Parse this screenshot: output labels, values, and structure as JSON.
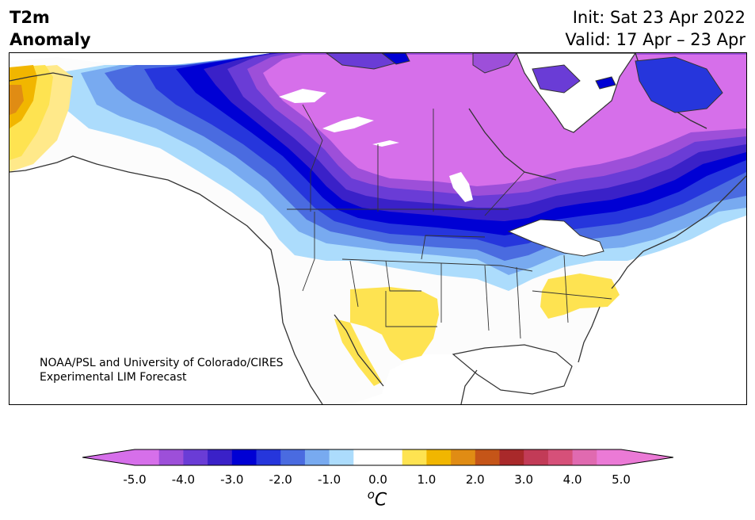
{
  "title": {
    "left_line1": "T2m",
    "left_line2": "Anomaly",
    "right_line1": "Init: Sat 23 Apr 2022",
    "right_line2": "Valid: 17 Apr – 23 Apr"
  },
  "credit": {
    "line1": "NOAA/PSL and University of Colorado/CIRES",
    "line2": "Experimental LIM Forecast"
  },
  "colorbar": {
    "ticks": [
      "-5.0",
      "-4.0",
      "-3.0",
      "-2.0",
      "-1.0",
      "0.0",
      "1.0",
      "2.0",
      "3.0",
      "4.0",
      "5.0"
    ],
    "unit_sup": "o",
    "unit": "C",
    "colors": [
      "#d66fea",
      "#9d4fd9",
      "#6a3cd6",
      "#3a21c8",
      "#0000d4",
      "#2636dc",
      "#4a6be0",
      "#78aaf0",
      "#acdcfc",
      "#ffffff",
      "#ffffff",
      "#fee351",
      "#f1b600",
      "#e08c14",
      "#c55518",
      "#a9292a",
      "#c23b57",
      "#d65079",
      "#e06ab0",
      "#eb7ad6"
    ],
    "extend_low_color": "#d66fea",
    "extend_high_color": "#eb7ad6"
  },
  "map": {
    "land_color": "#fcfcfc",
    "ocean_color": "#ffffff",
    "coast_color": "#333333"
  }
}
